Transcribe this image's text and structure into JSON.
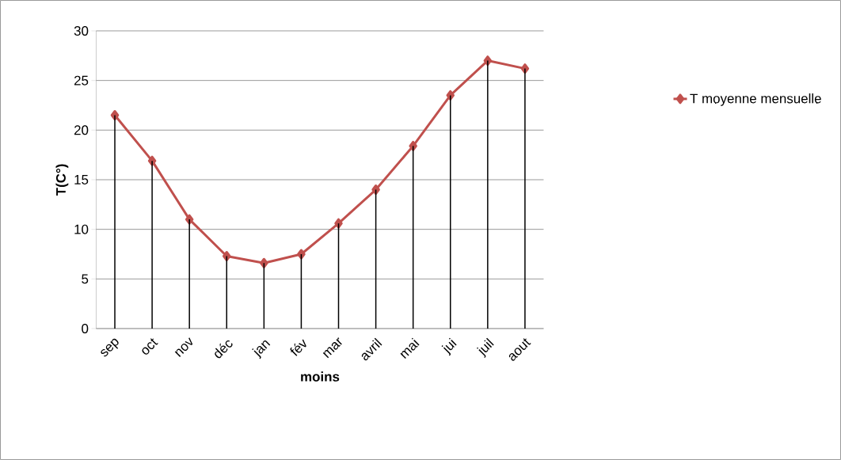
{
  "chart_data": {
    "type": "line",
    "xlabel": "moins",
    "ylabel": "T(C°)",
    "categories": [
      "sep",
      "oct",
      "nov",
      "déc",
      "jan",
      "fév",
      "mar",
      "avril",
      "mai",
      "jui",
      "juil",
      "aout"
    ],
    "series": [
      {
        "name": "T moyenne mensuelle",
        "color": "#c0504d",
        "values": [
          21.5,
          16.9,
          11.0,
          7.3,
          6.6,
          7.5,
          10.6,
          14.0,
          18.4,
          23.5,
          27.0,
          26.2
        ]
      },
      {
        "type": "bar",
        "color": "#000000",
        "values": [
          21.5,
          16.9,
          11.0,
          7.3,
          6.6,
          7.5,
          10.6,
          14.0,
          18.4,
          23.5,
          27.0,
          26.2
        ]
      }
    ],
    "ylim": [
      0,
      30
    ],
    "yticks": [
      0,
      5,
      10,
      15,
      20,
      25,
      30
    ],
    "grid": "y",
    "legend": "right",
    "marker": "diamond",
    "line_style": "solid"
  }
}
